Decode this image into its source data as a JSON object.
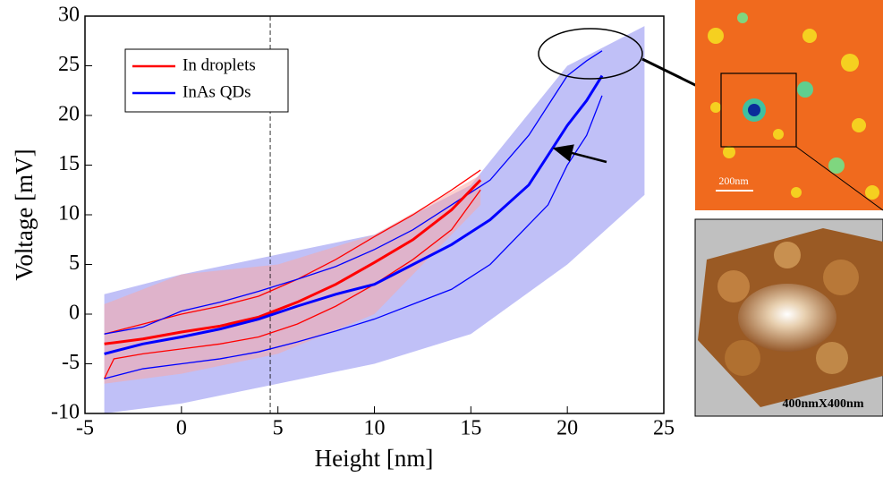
{
  "chart_data": {
    "type": "line",
    "x_label": "Height [nm]",
    "y_label": "Voltage [mV]",
    "xlim": [
      -5,
      25
    ],
    "ylim": [
      -10,
      30
    ],
    "xticks": [
      -5,
      0,
      5,
      10,
      15,
      20,
      25
    ],
    "yticks": [
      -10,
      -5,
      0,
      5,
      10,
      15,
      20,
      25,
      30
    ],
    "vline": 4.6,
    "clouds": [
      {
        "color": "#8c8cf0",
        "x": [
          -4,
          0,
          5,
          10,
          15,
          20,
          24
        ],
        "upper": [
          2,
          4,
          6,
          8,
          13,
          25,
          29
        ],
        "lower": [
          -10,
          -9,
          -7,
          -5,
          -2,
          5,
          12
        ]
      },
      {
        "color": "#f7a8a8",
        "x": [
          -4,
          0,
          5,
          10,
          15.5
        ],
        "upper": [
          1,
          4,
          5,
          8,
          14
        ],
        "lower": [
          -7,
          -6,
          -4,
          0,
          11
        ]
      }
    ],
    "series": [
      {
        "name": "In droplets",
        "color": "#ff0000",
        "width": 3,
        "x": [
          -4,
          -2,
          0,
          2,
          4,
          6,
          8,
          10,
          12,
          14,
          15.5
        ],
        "values": [
          -3,
          -2.5,
          -1.8,
          -1.2,
          -0.3,
          1.2,
          3,
          5.2,
          7.5,
          10.5,
          13.5
        ]
      },
      {
        "name": "InAs QDs",
        "color": "#0000ff",
        "width": 3,
        "x": [
          -4,
          -2,
          0,
          2,
          4,
          6,
          8,
          10,
          12,
          14,
          16,
          18,
          19,
          20,
          21,
          21.8
        ],
        "values": [
          -4,
          -3,
          -2.3,
          -1.5,
          -0.5,
          0.8,
          2,
          3,
          5,
          7,
          9.5,
          13,
          16,
          19,
          21.5,
          24
        ]
      }
    ],
    "bands": [
      {
        "color": "#ff0000",
        "x": [
          -4,
          -2,
          0,
          2,
          4,
          6,
          8,
          10,
          12,
          14,
          15.5
        ],
        "values": [
          -2,
          -1,
          0,
          0.8,
          1.8,
          3.5,
          5.5,
          7.8,
          10,
          12.5,
          14.5
        ]
      },
      {
        "color": "#ff0000",
        "x": [
          -4,
          -3.5,
          -2,
          0,
          2,
          4,
          6,
          8,
          10,
          12,
          14,
          15.5
        ],
        "values": [
          -6.5,
          -4.5,
          -4,
          -3.5,
          -3,
          -2.3,
          -1,
          0.8,
          3,
          5.5,
          8.5,
          12.5
        ]
      },
      {
        "color": "#0000ff",
        "x": [
          -4,
          -2,
          0,
          2,
          4,
          6,
          8,
          10,
          12,
          14,
          16,
          18,
          19,
          20,
          21,
          21.8
        ],
        "values": [
          -2,
          -1.3,
          0.3,
          1.2,
          2.3,
          3.5,
          4.8,
          6.5,
          8.5,
          11,
          13.5,
          18,
          21,
          24,
          25.5,
          26.5
        ]
      },
      {
        "color": "#0000ff",
        "x": [
          -4,
          -2,
          0,
          2,
          4,
          6,
          8,
          10,
          12,
          14,
          16,
          18,
          19,
          20,
          21,
          21.8
        ],
        "values": [
          -6.5,
          -5.5,
          -5,
          -4.5,
          -3.8,
          -2.8,
          -1.7,
          -0.5,
          1,
          2.5,
          5,
          9,
          11,
          15,
          18,
          22
        ]
      }
    ]
  },
  "insets": {
    "scale_bar": "200nm",
    "size_label": "400nmX400nm"
  }
}
